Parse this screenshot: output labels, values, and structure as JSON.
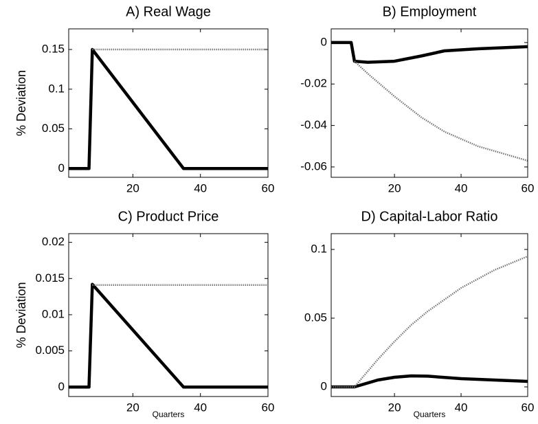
{
  "chart_data": [
    {
      "type": "line",
      "title": "A) Real Wage",
      "ylabel": "% Deviation",
      "x": [
        1,
        7,
        8,
        35,
        60
      ],
      "series": [
        {
          "color": "#000000",
          "style": "solid",
          "values": [
            0,
            0,
            0.15,
            0,
            0
          ]
        },
        {
          "color": "#777777",
          "style": "dotted",
          "values": [
            null,
            null,
            0.15,
            0.15,
            0.15
          ]
        }
      ],
      "xlim": [
        1,
        60
      ],
      "xticks": [
        20,
        40,
        60
      ],
      "ylim": [
        -0.011,
        0.176
      ],
      "yticks": [
        0,
        0.05,
        0.1,
        0.15
      ]
    },
    {
      "type": "line",
      "title": "B) Employment",
      "x": [
        1,
        7,
        8,
        12,
        20,
        28,
        35,
        45,
        60
      ],
      "series": [
        {
          "color": "#000000",
          "style": "solid",
          "values": [
            0,
            0,
            -0.009,
            -0.0095,
            -0.009,
            -0.0065,
            -0.004,
            -0.003,
            -0.002
          ]
        },
        {
          "color": "#777777",
          "style": "dotted",
          "values": [
            null,
            null,
            -0.009,
            -0.015,
            -0.026,
            -0.036,
            -0.043,
            -0.05,
            -0.057
          ]
        }
      ],
      "xlim": [
        1,
        60
      ],
      "xticks": [
        20,
        40,
        60
      ],
      "ylim": [
        -0.065,
        0.0066
      ],
      "yticks": [
        -0.06,
        -0.04,
        -0.02,
        0
      ]
    },
    {
      "type": "line",
      "title": "C) Product Price",
      "ylabel": "% Deviation",
      "xlabel": "Quarters",
      "x": [
        1,
        7,
        8,
        35,
        60
      ],
      "series": [
        {
          "color": "#000000",
          "style": "solid",
          "values": [
            0,
            0,
            0.0142,
            0,
            0
          ]
        },
        {
          "color": "#777777",
          "style": "dotted",
          "values": [
            null,
            null,
            0.0141,
            0.0141,
            0.0141
          ]
        }
      ],
      "xlim": [
        1,
        60
      ],
      "xticks": [
        20,
        40,
        60
      ],
      "ylim": [
        -0.0013,
        0.0212
      ],
      "yticks": [
        0,
        0.005,
        0.01,
        0.015,
        0.02
      ]
    },
    {
      "type": "line",
      "title": "D) Capital-Labor Ratio",
      "xlabel": "Quarters",
      "x": [
        1,
        7,
        8,
        15,
        20,
        25,
        30,
        40,
        50,
        60
      ],
      "series": [
        {
          "color": "#000000",
          "style": "solid",
          "values": [
            0,
            0,
            0,
            0.005,
            0.007,
            0.008,
            0.0078,
            0.006,
            0.005,
            0.004
          ]
        },
        {
          "color": "#777777",
          "style": "dotted",
          "values": [
            0,
            0,
            0,
            0.02,
            0.033,
            0.045,
            0.055,
            0.072,
            0.085,
            0.095
          ]
        }
      ],
      "xlim": [
        1,
        60
      ],
      "xticks": [
        20,
        40,
        60
      ],
      "ylim": [
        -0.007,
        0.1115
      ],
      "yticks": [
        0,
        0.05,
        0.1
      ]
    }
  ]
}
